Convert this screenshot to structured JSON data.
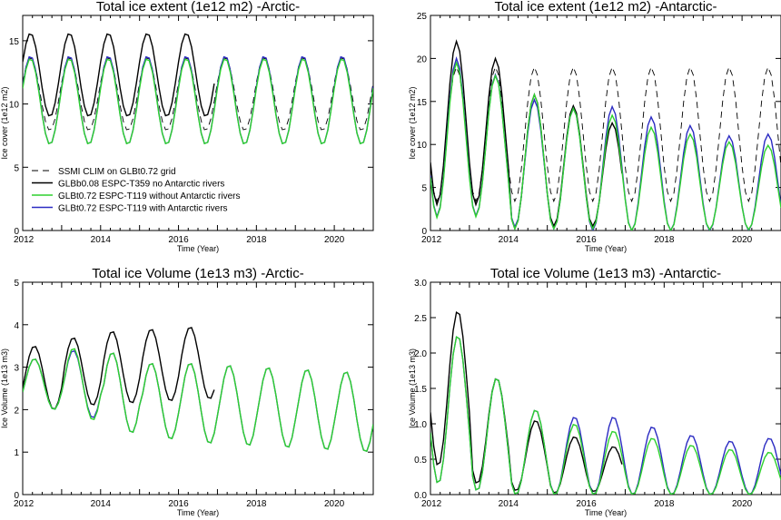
{
  "colors": {
    "ssmi": "#000000",
    "glbb": "#000000",
    "green": "#2ed12e",
    "blue": "#2b2bc2"
  },
  "legend": {
    "ssmi": "SSMI CLIM on GLBt0.72 grid",
    "glbb": "GLBb0.08 ESPC-T359 no Antarctic rivers",
    "green": "GLBt0.72 ESPC-T119 without Antarctic rivers",
    "blue": "GLBt0.72 ESPC-T119 with Antarctic rivers"
  },
  "chart_data": [
    {
      "type": "line",
      "title": "Total ice extent (1e12 m2)   -Arctic-",
      "xlabel": "Time (Year)",
      "ylabel": "Ice cover (1e12 m2)",
      "xlim": [
        2012,
        2021
      ],
      "ylim": [
        0,
        17
      ],
      "xticks": [
        2012,
        2014,
        2016,
        2018,
        2020
      ],
      "xticklabels": [
        "2012",
        "2014",
        "2016",
        "2018",
        "2020"
      ],
      "yticks": [
        0,
        5,
        10,
        15
      ],
      "yticklabels": [
        "0",
        "5",
        "10",
        "15"
      ],
      "legend_position": "lower-left",
      "series": [
        {
          "name": "SSMI CLIM on GLBt0.72 grid",
          "style": "dashed",
          "mean": 10.8,
          "amp": 2.9,
          "phase": 0.2,
          "start": 2012.0,
          "end": 2021.0
        },
        {
          "name": "GLBb0.08 ESPC-T359 no Antarctic rivers",
          "style": "solid",
          "mean": 12.3,
          "amp": 3.3,
          "phase": 0.2,
          "start": 2012.0,
          "end": 2016.95
        },
        {
          "name": "GLBt0.72 ESPC-T119 without Antarctic rivers",
          "style": "solid",
          "mean": 10.2,
          "amp": 3.4,
          "phase": 0.2,
          "start": 2012.0,
          "end": 2021.0
        },
        {
          "name": "GLBt0.72 ESPC-T119 with Antarctic rivers",
          "style": "solid",
          "mean": 10.3,
          "amp": 3.5,
          "phase": 0.2,
          "start": 2012.0,
          "end": 2021.0
        }
      ]
    },
    {
      "type": "line",
      "title": "Total ice extent (1e12 m2)   -Antarctic-",
      "xlabel": "Time (Year)",
      "ylabel": "Ice cover (1e12 m2)",
      "xlim": [
        2012,
        2021
      ],
      "ylim": [
        0,
        25
      ],
      "xticks": [
        2012,
        2014,
        2016,
        2018,
        2020
      ],
      "xticklabels": [
        "2012",
        "2014",
        "2016",
        "2018",
        "2020"
      ],
      "yticks": [
        0,
        5,
        10,
        15,
        20,
        25
      ],
      "yticklabels": [
        "0",
        "5",
        "10",
        "15",
        "20",
        "25"
      ],
      "series": [
        {
          "name": "SSMI CLIM on GLBt0.72 grid",
          "style": "dashed",
          "means": [
            11.2,
            11.2,
            11.2,
            11.2,
            11.2,
            11.2,
            11.2,
            11.2,
            11.2
          ],
          "amps": [
            7.8,
            7.8,
            7.8,
            7.8,
            7.8,
            7.8,
            7.8,
            7.8,
            7.8
          ],
          "phase": 0.67,
          "start": 2012.0,
          "end": 2021.0
        },
        {
          "name": "GLBb0.08 ESPC-T359 no Antarctic rivers",
          "style": "solid",
          "means": [
            12.5,
            11.5,
            8.0,
            7.5,
            6.5
          ],
          "amps": [
            9.5,
            8.5,
            7.8,
            7.0,
            6.0
          ],
          "phase": 0.67,
          "start": 2012.0,
          "end": 2016.95
        },
        {
          "name": "GLBt0.72 ESPC-T119 without Antarctic rivers",
          "style": "solid",
          "means": [
            10.5,
            9.8,
            8.0,
            7.2,
            6.8,
            6.0,
            5.6,
            5.2,
            5.0
          ],
          "amps": [
            9.0,
            8.2,
            7.8,
            7.0,
            6.6,
            6.0,
            5.6,
            5.1,
            4.9
          ],
          "phase": 0.67,
          "start": 2012.0,
          "end": 2021.0
        },
        {
          "name": "GLBt0.72 ESPC-T119 with Antarctic rivers",
          "style": "solid",
          "means": [
            10.8,
            9.9,
            7.8,
            7.2,
            7.2,
            6.6,
            6.1,
            5.5,
            5.6
          ],
          "amps": [
            9.2,
            8.2,
            7.4,
            7.0,
            7.2,
            6.6,
            6.1,
            5.5,
            5.6
          ],
          "phase": 0.67,
          "start": 2012.0,
          "end": 2021.0
        }
      ]
    },
    {
      "type": "line",
      "title": "Total ice Volume (1e13 m3)   -Arctic-",
      "xlabel": "Time (Year)",
      "ylabel": "Ice Volume (1e13 m3)",
      "xlim": [
        2012,
        2021
      ],
      "ylim": [
        0,
        5
      ],
      "xticks": [
        2012,
        2014,
        2016,
        2018,
        2020
      ],
      "xticklabels": [
        "2012",
        "2014",
        "2016",
        "2018",
        "2020"
      ],
      "yticks": [
        0,
        1,
        2,
        3,
        4,
        5
      ],
      "yticklabels": [
        "0",
        "1",
        "2",
        "3",
        "4",
        "5"
      ],
      "series": [
        {
          "name": "GLBb0.08 ESPC-T359 no Antarctic rivers",
          "style": "solid",
          "means": [
            2.75,
            2.9,
            3.0,
            3.05,
            3.1
          ],
          "amps": [
            0.75,
            0.8,
            0.85,
            0.85,
            0.85
          ],
          "phase": 0.3,
          "start": 2012.0,
          "end": 2016.95
        },
        {
          "name": "GLBt0.72 ESPC-T119 without Antarctic rivers",
          "style": "solid",
          "means": [
            2.6,
            2.6,
            2.4,
            2.2,
            2.15,
            2.1,
            2.05,
            2.0,
            1.95
          ],
          "amps": [
            0.6,
            0.85,
            0.95,
            0.9,
            0.95,
            0.95,
            0.95,
            0.95,
            0.95
          ],
          "phase": 0.3,
          "start": 2012.0,
          "end": 2021.0
        },
        {
          "name": "GLBt0.72 ESPC-T119 with Antarctic rivers",
          "style": "solid",
          "means": [
            2.6,
            2.6,
            2.4,
            2.2,
            2.15,
            2.1,
            2.05,
            2.0,
            1.95
          ],
          "amps": [
            0.6,
            0.8,
            0.95,
            0.9,
            0.95,
            0.95,
            0.95,
            0.95,
            0.95
          ],
          "phase": 0.3,
          "start": 2012.0,
          "end": 2021.0
        }
      ]
    },
    {
      "type": "line",
      "title": "Total ice Volume (1e13 m3)   -Antarctic-",
      "xlabel": "Time (Year)",
      "ylabel": "Ice Volume (1e13 m3)",
      "xlim": [
        2012,
        2021
      ],
      "ylim": [
        0,
        3.0
      ],
      "xticks": [
        2012,
        2014,
        2016,
        2018,
        2020
      ],
      "xticklabels": [
        "2012",
        "2014",
        "2016",
        "2018",
        "2020"
      ],
      "yticks": [
        0,
        0.5,
        1.0,
        1.5,
        2.0,
        2.5,
        3.0
      ],
      "yticklabels": [
        "0.0",
        "0.5",
        "1.0",
        "1.5",
        "2.0",
        "2.5",
        "3.0"
      ],
      "series": [
        {
          "name": "GLBb0.08 ESPC-T359 no Antarctic rivers",
          "style": "solid",
          "means": [
            1.5,
            0.9,
            0.55,
            0.42,
            0.36
          ],
          "amps": [
            1.1,
            0.75,
            0.5,
            0.4,
            0.32
          ],
          "phase": 0.7,
          "start": 2012.0,
          "end": 2016.95
        },
        {
          "name": "GLBt0.72 ESPC-T119 without Antarctic rivers",
          "style": "solid",
          "means": [
            1.2,
            0.85,
            0.6,
            0.5,
            0.45,
            0.4,
            0.35,
            0.32,
            0.3
          ],
          "amps": [
            1.05,
            0.8,
            0.6,
            0.5,
            0.45,
            0.4,
            0.35,
            0.32,
            0.3
          ],
          "phase": 0.7,
          "start": 2012.0,
          "end": 2021.0
        },
        {
          "name": "GLBt0.72 ESPC-T119 with Antarctic rivers",
          "style": "solid",
          "means": [
            1.2,
            0.85,
            0.6,
            0.55,
            0.55,
            0.48,
            0.42,
            0.38,
            0.4
          ],
          "amps": [
            1.05,
            0.8,
            0.6,
            0.55,
            0.55,
            0.48,
            0.42,
            0.38,
            0.4
          ],
          "phase": 0.7,
          "start": 2012.0,
          "end": 2021.0
        }
      ]
    }
  ]
}
